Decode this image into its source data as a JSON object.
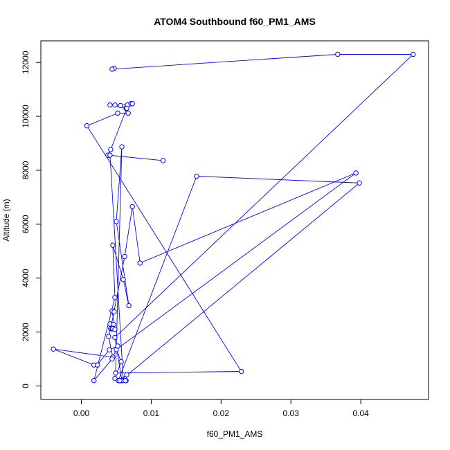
{
  "chart_data": {
    "type": "scatter",
    "title": "ATOM4 Southbound f60_PM1_AMS",
    "xlabel": "f60_PM1_AMS",
    "ylabel": "Altitude (m)",
    "xlim": [
      -0.0058,
      0.0497
    ],
    "ylim": [
      -500,
      12800
    ],
    "xticks": [
      0.0,
      0.01,
      0.02,
      0.03,
      0.04
    ],
    "xtick_labels": [
      "0.00",
      "0.01",
      "0.02",
      "0.03",
      "0.04"
    ],
    "yticks": [
      0,
      2000,
      4000,
      6000,
      8000,
      10000,
      12000
    ],
    "ytick_labels": [
      "0",
      "2000",
      "4000",
      "6000",
      "8000",
      "10000",
      "12000"
    ],
    "grid": false,
    "legend": "none",
    "color": "#0000ff",
    "marker": "open-circle",
    "connected": true,
    "series": [
      {
        "points": [
          [
            0.0047,
            11780
          ],
          [
            0.0044,
            11750
          ],
          [
            0.0367,
            12300
          ],
          [
            0.0475,
            12300
          ],
          [
            0.0048,
            1800
          ],
          [
            0.0058,
            200
          ],
          [
            0.0054,
            200
          ],
          [
            0.0064,
            200
          ],
          [
            0.0065,
            420
          ],
          [
            0.0053,
            200
          ],
          [
            0.0165,
            7780
          ],
          [
            0.0398,
            7530
          ],
          [
            0.0056,
            200
          ],
          [
            0.0048,
            280
          ],
          [
            0.0057,
            900
          ],
          [
            0.005,
            1350
          ],
          [
            0.0393,
            7900
          ],
          [
            0.0084,
            4560
          ],
          [
            0.0073,
            6650
          ],
          [
            0.0062,
            4800
          ],
          [
            0.0042,
            2130
          ],
          [
            0.0041,
            2300
          ],
          [
            0.0046,
            2280
          ],
          [
            0.0042,
            2130
          ],
          [
            0.0045,
            2140
          ],
          [
            0.0044,
            2120
          ],
          [
            0.0045,
            2130
          ],
          [
            0.0048,
            2100
          ],
          [
            0.0044,
            2780
          ],
          [
            0.0047,
            2750
          ],
          [
            0.0039,
            1830
          ],
          [
            0.0045,
            1070
          ],
          [
            -0.004,
            1370
          ],
          [
            0.0018,
            780
          ],
          [
            0.0023,
            780
          ],
          [
            0.004,
            1340
          ],
          [
            0.0052,
            1480
          ],
          [
            0.0044,
            1000
          ],
          [
            0.0018,
            200
          ],
          [
            0.0048,
            3280
          ],
          [
            0.0045,
            5220
          ],
          [
            0.006,
            3950
          ],
          [
            0.0068,
            2980
          ],
          [
            0.005,
            6100
          ],
          [
            0.0058,
            8870
          ],
          [
            0.0049,
            480
          ],
          [
            0.0229,
            540
          ],
          [
            0.0008,
            9650
          ],
          [
            0.0052,
            10120
          ],
          [
            0.0067,
            10120
          ],
          [
            0.0064,
            10300
          ],
          [
            0.0066,
            10420
          ],
          [
            0.0071,
            10470
          ],
          [
            0.0073,
            10470
          ],
          [
            0.0056,
            10400
          ],
          [
            0.0048,
            10420
          ],
          [
            0.0041,
            10420
          ],
          [
            0.0065,
            10300
          ],
          [
            0.0042,
            8770
          ],
          [
            0.0039,
            8560
          ],
          [
            0.0117,
            8360
          ],
          [
            0.0038,
            8560
          ],
          [
            0.0041,
            8560
          ],
          [
            0.006,
            200
          ],
          [
            0.0063,
            200
          ],
          [
            0.0055,
            200
          ]
        ]
      }
    ]
  }
}
